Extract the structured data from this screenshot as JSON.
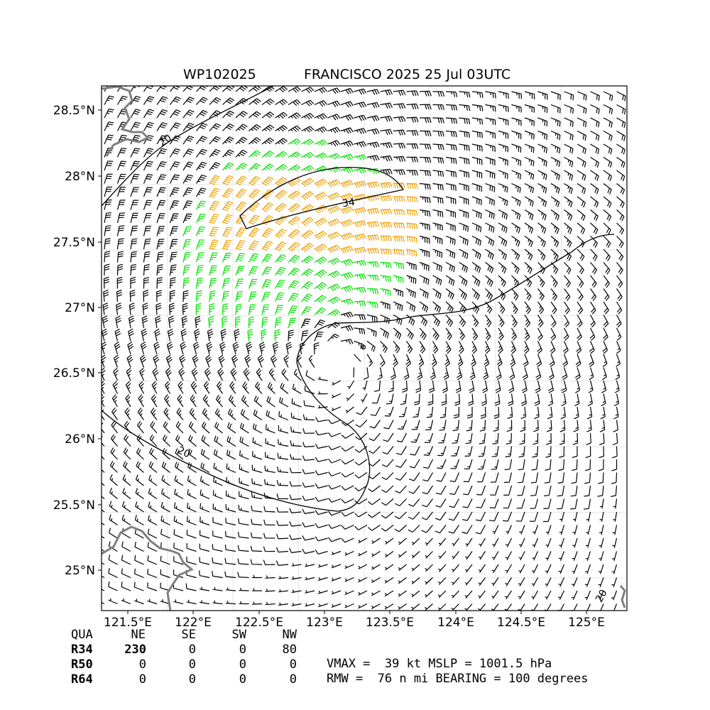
{
  "title": {
    "storm_id": "WP102025",
    "name_time": "FRANCISCO 2025 25 Jul 03UTC"
  },
  "axes": {
    "lon_ticks": [
      "121.5°E",
      "122°E",
      "122.5°E",
      "123°E",
      "123.5°E",
      "124°E",
      "124.5°E",
      "125°E"
    ],
    "lat_ticks": [
      "28.5°N",
      "28°N",
      "27.5°N",
      "27°N",
      "26.5°N",
      "26°N",
      "25.5°N",
      "25°N"
    ],
    "lon_range": [
      121.5,
      125.5
    ],
    "lat_range": [
      24.75,
      28.75
    ],
    "grid": true
  },
  "storm": {
    "center_lon": 123.3,
    "center_lat": 26.65,
    "rmw_nmi": 76
  },
  "contour_labels": {
    "c20_upper": "20",
    "c34": "34",
    "c20_lower": "20",
    "c20_corner": "20"
  },
  "wind_colors": {
    "below_34kt": "#000000",
    "34_to_50kt": "#00e000",
    "above_50kt": "#f0a000",
    "coastline": "#808080"
  },
  "table": {
    "header": [
      "QUA",
      "NE",
      "SE",
      "SW",
      "NW"
    ],
    "rows": [
      {
        "label": "R34",
        "values": [
          "230",
          "0",
          "0",
          "80"
        ]
      },
      {
        "label": "R50",
        "values": [
          "0",
          "0",
          "0",
          "0"
        ]
      },
      {
        "label": "R64",
        "values": [
          "0",
          "0",
          "0",
          "0"
        ]
      }
    ]
  },
  "summary": {
    "line1": "VMAX =  39 kt MSLP = 1001.5 hPa",
    "line2": "RMW =  76 n mi BEARING = 100 degrees"
  }
}
